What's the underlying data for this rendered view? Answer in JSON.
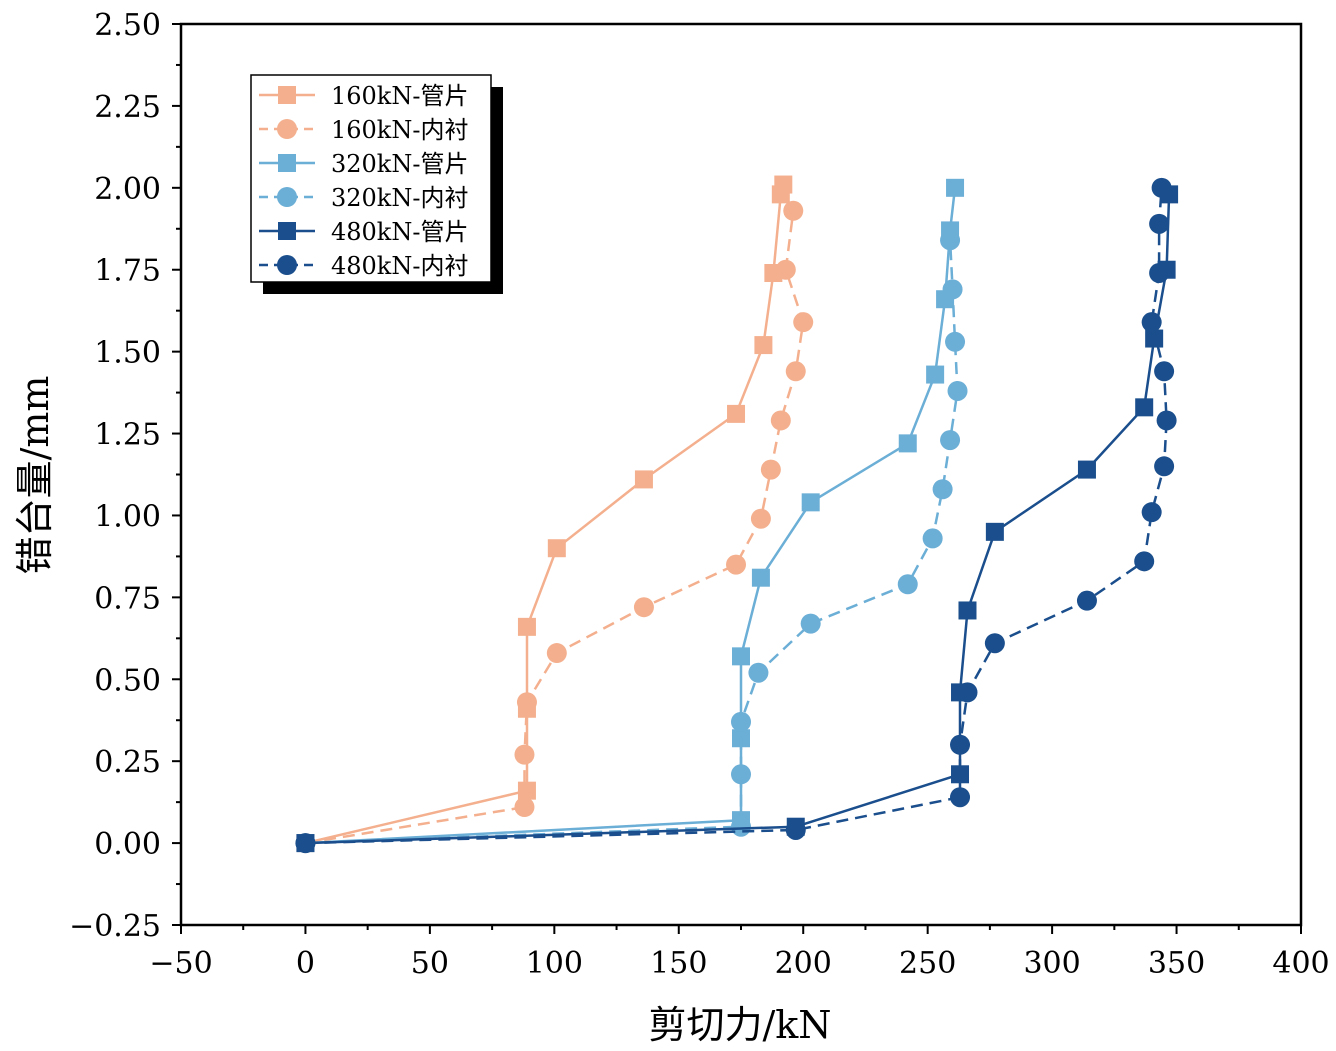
{
  "chart_data": {
    "type": "line",
    "title": "",
    "xlabel": "剪切力/kN",
    "ylabel": "错台量/mm",
    "xlim": [
      -50,
      400
    ],
    "ylim": [
      -0.25,
      2.5
    ],
    "xticks": [
      -50,
      0,
      50,
      100,
      150,
      200,
      250,
      300,
      350,
      400
    ],
    "yticks": [
      -0.25,
      0,
      0.25,
      0.5,
      0.75,
      1.0,
      1.25,
      1.5,
      1.75,
      2.0,
      2.25,
      2.5
    ],
    "xtick_labels": [
      "−50",
      "0",
      "50",
      "100",
      "150",
      "200",
      "250",
      "300",
      "350",
      "400"
    ],
    "ytick_labels": [
      "−0.25",
      "0.00",
      "0.25",
      "0.50",
      "0.75",
      "1.00",
      "1.25",
      "1.50",
      "1.75",
      "2.00",
      "2.25",
      "2.50"
    ],
    "grid": false,
    "legend_position": "top-left",
    "series": [
      {
        "name": "160kN-管片",
        "color": "#F4B08E",
        "marker": "square",
        "dash": "solid",
        "x": [
          0,
          89,
          89,
          89,
          101,
          136,
          173,
          184,
          188,
          191,
          192
        ],
        "y": [
          0,
          0.16,
          0.41,
          0.66,
          0.9,
          1.11,
          1.31,
          1.52,
          1.74,
          1.98,
          2.01
        ]
      },
      {
        "name": "160kN-内衬",
        "color": "#F4B08E",
        "marker": "circle",
        "dash": "dashed",
        "x": [
          0,
          88,
          88,
          89,
          101,
          136,
          173,
          183,
          187,
          191,
          197,
          200,
          193,
          196
        ],
        "y": [
          0,
          0.11,
          0.27,
          0.43,
          0.58,
          0.72,
          0.85,
          0.99,
          1.14,
          1.29,
          1.44,
          1.59,
          1.75,
          1.93
        ]
      },
      {
        "name": "320kN-管片",
        "color": "#6BAED6",
        "marker": "square",
        "dash": "solid",
        "x": [
          0,
          175,
          175,
          175,
          183,
          203,
          242,
          253,
          257,
          259,
          261
        ],
        "y": [
          0,
          0.07,
          0.32,
          0.57,
          0.81,
          1.04,
          1.22,
          1.43,
          1.66,
          1.87,
          2.0
        ]
      },
      {
        "name": "320kN-内衬",
        "color": "#6BAED6",
        "marker": "circle",
        "dash": "dashed",
        "x": [
          0,
          175,
          175,
          175,
          182,
          203,
          242,
          252,
          256,
          259,
          262,
          261,
          260,
          259
        ],
        "y": [
          0,
          0.05,
          0.21,
          0.37,
          0.52,
          0.67,
          0.79,
          0.93,
          1.08,
          1.23,
          1.38,
          1.53,
          1.69,
          1.84
        ]
      },
      {
        "name": "480kN-管片",
        "color": "#1A4E8C",
        "marker": "square",
        "dash": "solid",
        "x": [
          0,
          197,
          263,
          263,
          266,
          277,
          314,
          337,
          341,
          346,
          347
        ],
        "y": [
          0,
          0.05,
          0.21,
          0.46,
          0.71,
          0.95,
          1.14,
          1.33,
          1.54,
          1.75,
          1.98
        ]
      },
      {
        "name": "480kN-内衬",
        "color": "#1A4E8C",
        "marker": "circle",
        "dash": "dashed",
        "x": [
          0,
          197,
          263,
          263,
          266,
          277,
          314,
          337,
          340,
          345,
          346,
          345,
          340,
          343,
          343,
          344
        ],
        "y": [
          0,
          0.04,
          0.14,
          0.3,
          0.46,
          0.61,
          0.74,
          0.86,
          1.01,
          1.15,
          1.29,
          1.44,
          1.59,
          1.74,
          1.89,
          2.0
        ]
      }
    ]
  }
}
